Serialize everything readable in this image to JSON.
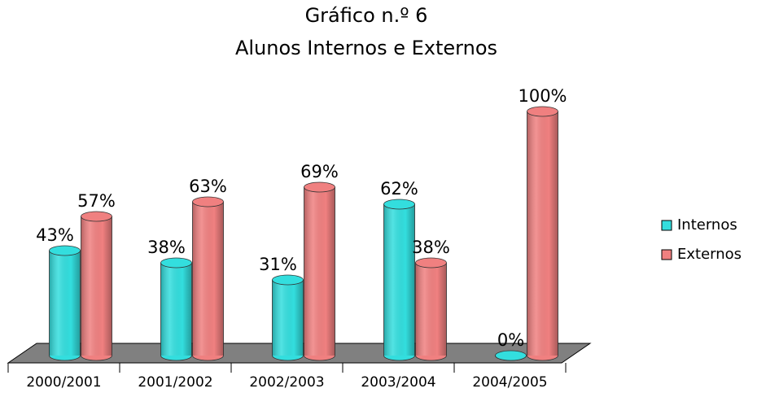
{
  "chart_data": {
    "type": "bar3d",
    "title": "Gráfico n.º 6",
    "subtitle": "Alunos Internos e Externos",
    "categories": [
      "2000/2001",
      "2001/2002",
      "2002/2003",
      "2003/2004",
      "2004/2005"
    ],
    "series": [
      {
        "name": "Internos",
        "color": "#33dede",
        "values": [
          43,
          38,
          31,
          62,
          0
        ],
        "value_labels": [
          "43%",
          "38%",
          "31%",
          "62%",
          "0%"
        ]
      },
      {
        "name": "Externos",
        "color": "#f08080",
        "values": [
          57,
          63,
          69,
          38,
          100
        ],
        "value_labels": [
          "57%",
          "63%",
          "69%",
          "38%",
          "100%"
        ]
      }
    ],
    "legend": "right"
  }
}
